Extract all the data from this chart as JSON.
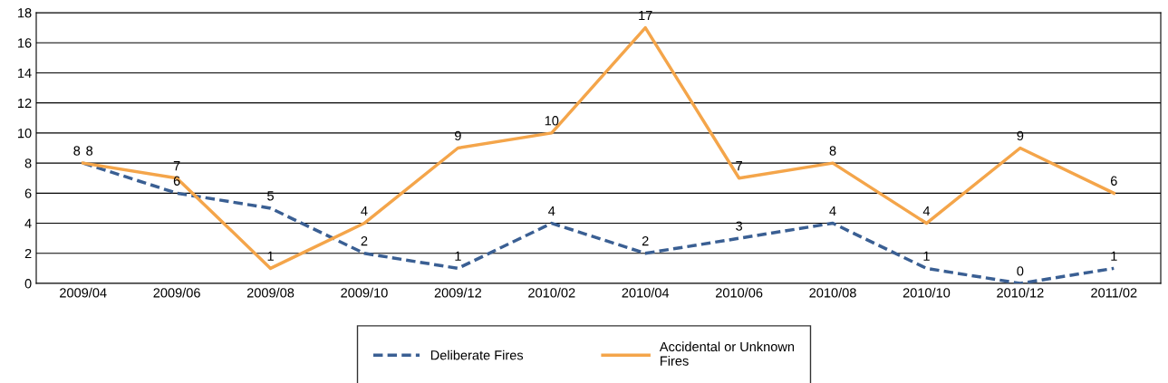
{
  "chart_data": {
    "type": "line",
    "categories": [
      "2009/04",
      "2009/06",
      "2009/08",
      "2009/10",
      "2009/12",
      "2010/02",
      "2010/04",
      "2010/06",
      "2010/08",
      "2010/10",
      "2010/12",
      "2011/02"
    ],
    "series": [
      {
        "name": "Deliberate Fires",
        "color": "#3a5f93",
        "line_style": "dashed",
        "values": [
          8,
          6,
          5,
          2,
          1,
          4,
          2,
          3,
          4,
          1,
          0,
          1
        ]
      },
      {
        "name": "Accidental or Unknown Fires",
        "color": "#f4a54a",
        "line_style": "solid",
        "values": [
          8,
          7,
          1,
          4,
          9,
          10,
          17,
          7,
          8,
          4,
          9,
          6
        ]
      }
    ],
    "ylim": [
      0,
      18
    ],
    "yticks": [
      0,
      2,
      4,
      6,
      8,
      10,
      12,
      14,
      16,
      18
    ],
    "grid": "y",
    "legend": "bottom",
    "data_labels": true,
    "marker": "none"
  }
}
